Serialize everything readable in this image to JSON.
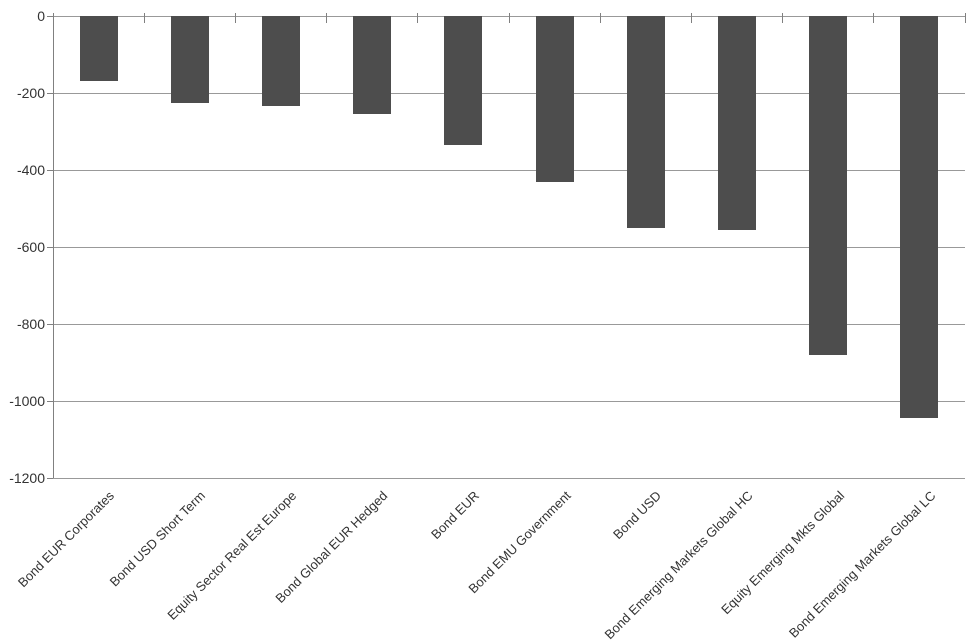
{
  "chart_data": {
    "type": "bar",
    "title": "",
    "categories": [
      "Bond EUR Corporates",
      "Bond USD Short Term",
      "Equity Sector Real Est Europe",
      "Bond Global EUR Hedged",
      "Bond EUR",
      "Bond EMU Government",
      "Bond USD",
      "Bond Emerging Markets Global HC",
      "Equity Emerging Mkts Global",
      "Bond Emerging Markets Global LC"
    ],
    "values": [
      -170,
      -225,
      -235,
      -255,
      -335,
      -430,
      -550,
      -555,
      -880,
      -1045
    ],
    "ylim": [
      0,
      -1200
    ],
    "yticks": [
      0,
      -200,
      -400,
      -600,
      -800,
      -1000,
      -1200
    ],
    "ytick_labels": [
      "0",
      "-200",
      "-400",
      "-600",
      "-800",
      "-1000",
      "-1200"
    ],
    "grid": true,
    "legend": "none",
    "xlabel": "",
    "ylabel": "",
    "bar_color": "#4d4d4d",
    "grid_color": "#999999",
    "axis_color": "#808080",
    "text_color": "#333333"
  }
}
